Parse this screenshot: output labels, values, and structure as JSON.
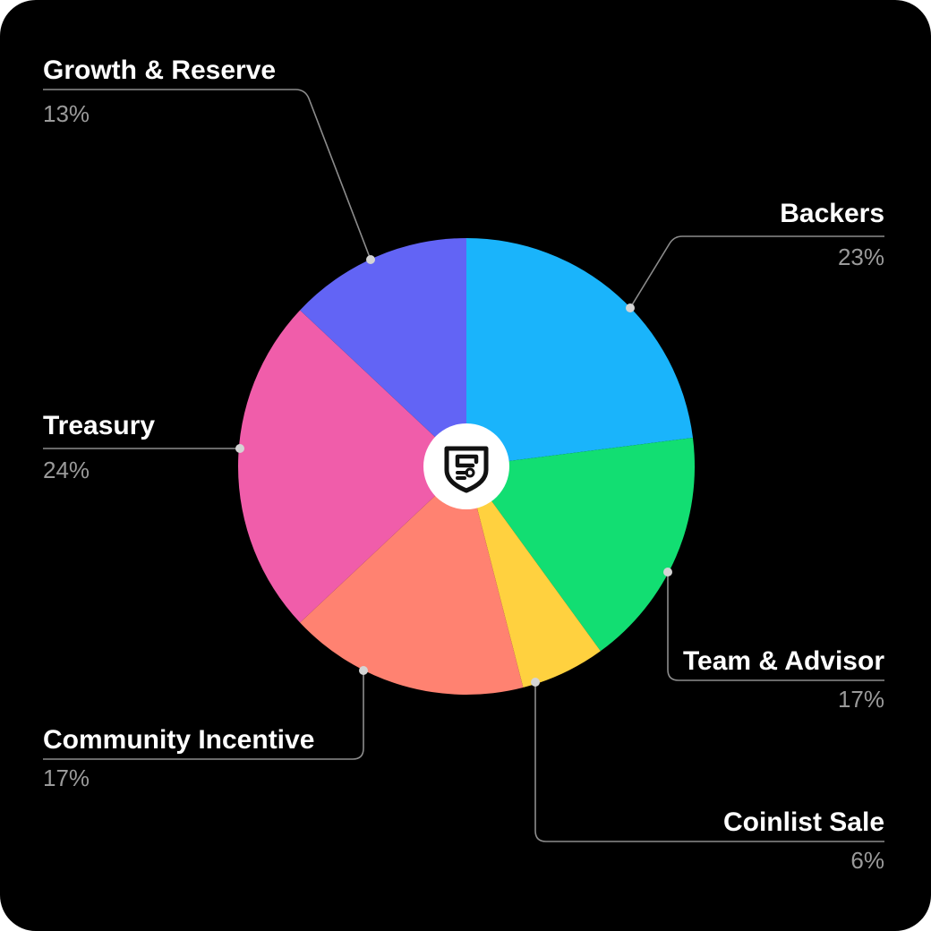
{
  "chart_data": {
    "type": "pie",
    "slices": [
      {
        "label": "Backers",
        "value": 23,
        "value_label": "23%",
        "color": "#1AB4FB"
      },
      {
        "label": "Team & Advisor",
        "value": 17,
        "value_label": "17%",
        "color": "#12DE72"
      },
      {
        "label": "Coinlist Sale",
        "value": 6,
        "value_label": "6%",
        "color": "#FFD13F"
      },
      {
        "label": "Community Incentive",
        "value": 17,
        "value_label": "17%",
        "color": "#FF8271"
      },
      {
        "label": "Treasury",
        "value": 24,
        "value_label": "24%",
        "color": "#F05DAA"
      },
      {
        "label": "Growth & Reserve",
        "value": 13,
        "value_label": "13%",
        "color": "#6264F5"
      }
    ],
    "start_angle_deg": 0,
    "direction": "clockwise",
    "center_badge": "logo-icon",
    "background_color": "#000000"
  }
}
